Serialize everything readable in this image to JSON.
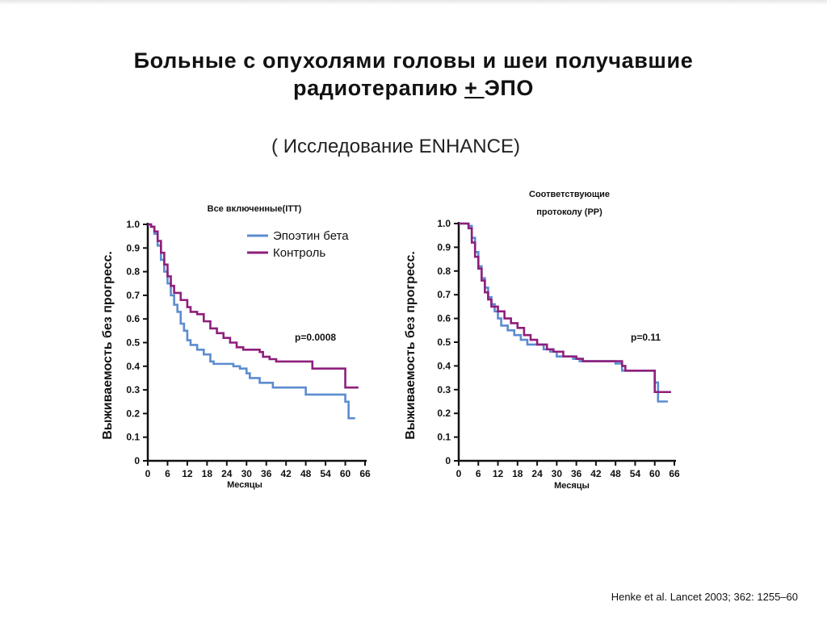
{
  "title": {
    "line1": "Больные с опухолями головы и шеи получавшие",
    "line2_pre": "радиотерапию ",
    "line2_pm": "+ ",
    "line2_post": "ЭПО"
  },
  "subtitle": "( Исследование ENHANCE)",
  "citation": "Henke et al. Lancet 2003; 362: 1255–60",
  "colors": {
    "epoetin": "#5b8ccf",
    "control": "#8e1f7c",
    "axis": "#111111"
  },
  "chart_data": [
    {
      "type": "line",
      "step": true,
      "title": "Все включенные(ITT)",
      "xlabel": "Месяцы",
      "ylabel": "Выживаемость без прогресс.",
      "xlim": [
        0,
        66
      ],
      "ylim": [
        0,
        1.0
      ],
      "x_ticks": [
        "0",
        "6",
        "12",
        "18",
        "24",
        "30",
        "36",
        "42",
        "48",
        "54",
        "60",
        "66"
      ],
      "y_ticks": [
        "0",
        "0.1",
        "0.2",
        "0.3",
        "0.4",
        "0.5",
        "0.6",
        "0.7",
        "0.8",
        "0.9",
        "1.0"
      ],
      "legend": [
        "Эпоэтин бета",
        "Контроль"
      ],
      "annotation": "p=0.0008",
      "series": [
        {
          "name": "Эпоэтин бета",
          "color": "#5b8ccf",
          "points": [
            [
              0,
              1.0
            ],
            [
              1,
              0.99
            ],
            [
              2,
              0.96
            ],
            [
              3,
              0.91
            ],
            [
              4,
              0.85
            ],
            [
              5,
              0.8
            ],
            [
              6,
              0.75
            ],
            [
              7,
              0.7
            ],
            [
              8,
              0.66
            ],
            [
              9,
              0.63
            ],
            [
              10,
              0.58
            ],
            [
              11,
              0.55
            ],
            [
              12,
              0.51
            ],
            [
              13,
              0.49
            ],
            [
              15,
              0.47
            ],
            [
              17,
              0.45
            ],
            [
              19,
              0.42
            ],
            [
              20,
              0.41
            ],
            [
              26,
              0.4
            ],
            [
              28,
              0.39
            ],
            [
              30,
              0.37
            ],
            [
              31,
              0.35
            ],
            [
              34,
              0.33
            ],
            [
              38,
              0.31
            ],
            [
              48,
              0.28
            ],
            [
              60,
              0.25
            ],
            [
              61,
              0.18
            ],
            [
              63,
              0.18
            ]
          ]
        },
        {
          "name": "Контроль",
          "color": "#8e1f7c",
          "points": [
            [
              0,
              1.0
            ],
            [
              1,
              0.99
            ],
            [
              2,
              0.97
            ],
            [
              3,
              0.93
            ],
            [
              4,
              0.88
            ],
            [
              5,
              0.83
            ],
            [
              6,
              0.78
            ],
            [
              7,
              0.74
            ],
            [
              8,
              0.71
            ],
            [
              10,
              0.68
            ],
            [
              12,
              0.65
            ],
            [
              13,
              0.63
            ],
            [
              15,
              0.62
            ],
            [
              17,
              0.59
            ],
            [
              19,
              0.56
            ],
            [
              21,
              0.54
            ],
            [
              23,
              0.52
            ],
            [
              25,
              0.5
            ],
            [
              27,
              0.48
            ],
            [
              29,
              0.47
            ],
            [
              34,
              0.46
            ],
            [
              35,
              0.44
            ],
            [
              37,
              0.43
            ],
            [
              39,
              0.42
            ],
            [
              50,
              0.39
            ],
            [
              59,
              0.39
            ],
            [
              60,
              0.31
            ],
            [
              64,
              0.31
            ]
          ]
        }
      ]
    },
    {
      "type": "line",
      "step": true,
      "title": "Соответствующие протоколу (PP)",
      "title_line1": "Соответствующие",
      "title_line2": "протоколу (PP)",
      "xlabel": "Месяцы",
      "ylabel": "Выживаемость без прогресс.",
      "xlim": [
        0,
        66
      ],
      "ylim": [
        0,
        1.0
      ],
      "x_ticks": [
        "0",
        "6",
        "12",
        "18",
        "24",
        "30",
        "36",
        "42",
        "48",
        "54",
        "60",
        "66"
      ],
      "y_ticks": [
        "0",
        "0.1",
        "0.2",
        "0.3",
        "0.4",
        "0.5",
        "0.6",
        "0.7",
        "0.8",
        "0.9",
        "1.0"
      ],
      "annotation": "p=0.11",
      "series": [
        {
          "name": "Эпоэтин бета",
          "color": "#5b8ccf",
          "points": [
            [
              0,
              1.0
            ],
            [
              3,
              0.99
            ],
            [
              4,
              0.94
            ],
            [
              5,
              0.88
            ],
            [
              6,
              0.82
            ],
            [
              7,
              0.77
            ],
            [
              8,
              0.73
            ],
            [
              9,
              0.69
            ],
            [
              10,
              0.66
            ],
            [
              11,
              0.63
            ],
            [
              12,
              0.6
            ],
            [
              13,
              0.57
            ],
            [
              15,
              0.55
            ],
            [
              17,
              0.53
            ],
            [
              19,
              0.51
            ],
            [
              21,
              0.49
            ],
            [
              26,
              0.47
            ],
            [
              28,
              0.46
            ],
            [
              30,
              0.44
            ],
            [
              35,
              0.43
            ],
            [
              37,
              0.42
            ],
            [
              48,
              0.41
            ],
            [
              50,
              0.38
            ],
            [
              59,
              0.38
            ],
            [
              60,
              0.33
            ],
            [
              61,
              0.25
            ],
            [
              64,
              0.25
            ]
          ]
        },
        {
          "name": "Контроль",
          "color": "#8e1f7c",
          "points": [
            [
              0,
              1.0
            ],
            [
              3,
              0.98
            ],
            [
              4,
              0.92
            ],
            [
              5,
              0.86
            ],
            [
              6,
              0.81
            ],
            [
              7,
              0.76
            ],
            [
              8,
              0.71
            ],
            [
              9,
              0.68
            ],
            [
              10,
              0.65
            ],
            [
              12,
              0.63
            ],
            [
              14,
              0.6
            ],
            [
              16,
              0.58
            ],
            [
              18,
              0.56
            ],
            [
              20,
              0.53
            ],
            [
              22,
              0.51
            ],
            [
              24,
              0.49
            ],
            [
              27,
              0.47
            ],
            [
              29,
              0.46
            ],
            [
              32,
              0.44
            ],
            [
              36,
              0.43
            ],
            [
              38,
              0.42
            ],
            [
              50,
              0.4
            ],
            [
              51,
              0.38
            ],
            [
              59,
              0.38
            ],
            [
              60,
              0.29
            ],
            [
              65,
              0.29
            ]
          ]
        }
      ]
    }
  ]
}
